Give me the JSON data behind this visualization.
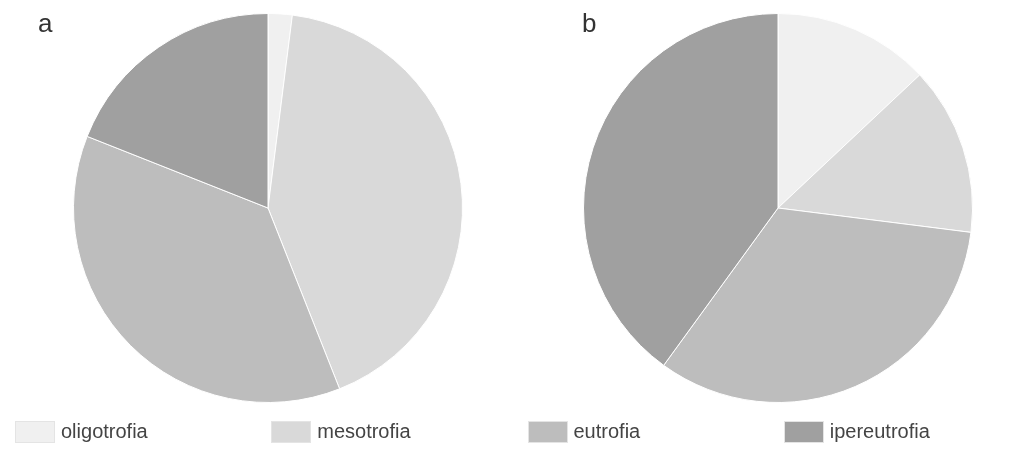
{
  "chart_data": [
    {
      "type": "pie",
      "title": "a",
      "categories": [
        "oligotrofia",
        "mesotrofia",
        "eutrofia",
        "ipereutrofia"
      ],
      "values": [
        2,
        42,
        37,
        19
      ],
      "colors": [
        "#f0f0f0",
        "#d9d9d9",
        "#bdbdbd",
        "#a0a0a0"
      ],
      "legend": "bottom"
    },
    {
      "type": "pie",
      "title": "b",
      "categories": [
        null,
        null,
        null,
        null
      ],
      "values": [
        13,
        14,
        33,
        40
      ],
      "colors": [
        "#f0f0f0",
        "#d9d9d9",
        "#bdbdbd",
        "#a0a0a0"
      ],
      "legend": false
    }
  ]
}
